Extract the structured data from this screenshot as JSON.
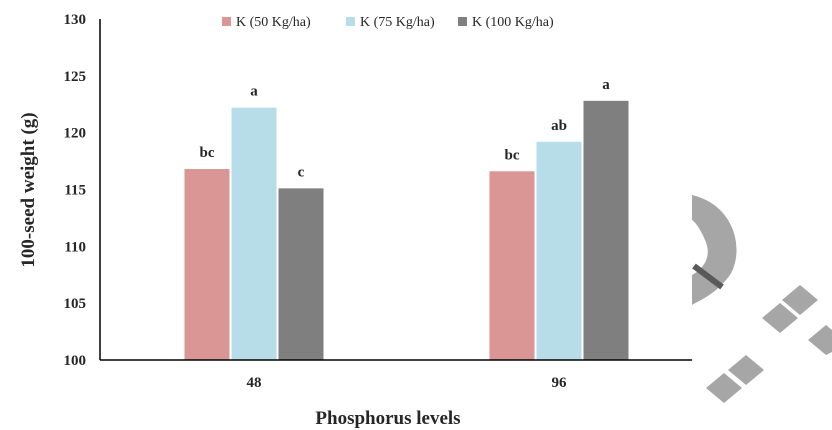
{
  "chart_data": {
    "type": "bar",
    "xlabel": "Phosphorus levels",
    "ylabel": "100-seed weight (g)",
    "ylim": [
      100,
      130
    ],
    "yticks": [
      100,
      105,
      110,
      115,
      120,
      125,
      130
    ],
    "categories": [
      "48",
      "96"
    ],
    "legend_position": "top",
    "grid": false,
    "series": [
      {
        "name": "K (50 Kg/ha)",
        "color": "#d99694",
        "values": [
          116.8,
          116.6
        ],
        "labels": [
          "bc",
          "bc"
        ]
      },
      {
        "name": "K (75 Kg/ha)",
        "color": "#b7dee8",
        "values": [
          122.2,
          119.2
        ],
        "labels": [
          "a",
          "ab"
        ]
      },
      {
        "name": "K (100 Kg/ha)",
        "color": "#7f7f7f",
        "values": [
          115.1,
          122.8
        ],
        "labels": [
          "c",
          "a"
        ]
      }
    ]
  },
  "decor": {
    "shape_color": "#a6a6a6",
    "dark_color": "#595959"
  }
}
